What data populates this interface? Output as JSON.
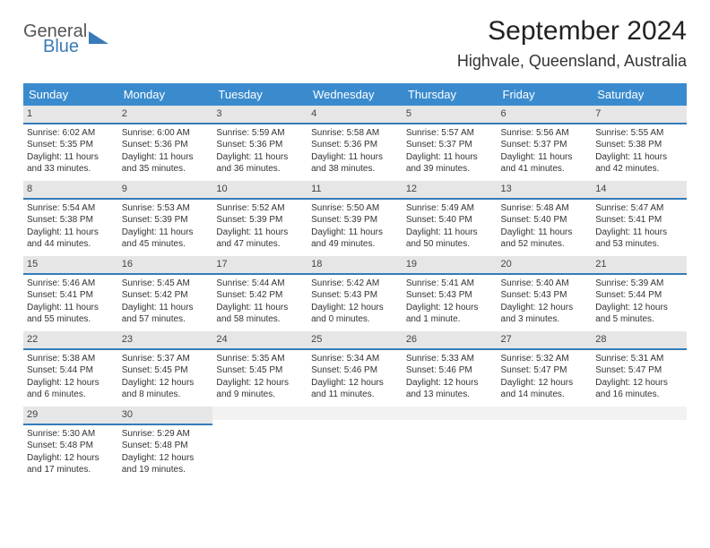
{
  "logo": {
    "line1": "General",
    "line2": "Blue"
  },
  "title": "September 2024",
  "location": "Highvale, Queensland, Australia",
  "daynames": [
    "Sunday",
    "Monday",
    "Tuesday",
    "Wednesday",
    "Thursday",
    "Friday",
    "Saturday"
  ],
  "colors": {
    "header_bg": "#3a8bce",
    "date_bar": "#e6e6e6",
    "rule": "#347cb8",
    "logo_blue": "#3a7ab8"
  },
  "weeks": [
    [
      {
        "d": "1",
        "sr": "6:02 AM",
        "ss": "5:35 PM",
        "dl": "11 hours and 33 minutes."
      },
      {
        "d": "2",
        "sr": "6:00 AM",
        "ss": "5:36 PM",
        "dl": "11 hours and 35 minutes."
      },
      {
        "d": "3",
        "sr": "5:59 AM",
        "ss": "5:36 PM",
        "dl": "11 hours and 36 minutes."
      },
      {
        "d": "4",
        "sr": "5:58 AM",
        "ss": "5:36 PM",
        "dl": "11 hours and 38 minutes."
      },
      {
        "d": "5",
        "sr": "5:57 AM",
        "ss": "5:37 PM",
        "dl": "11 hours and 39 minutes."
      },
      {
        "d": "6",
        "sr": "5:56 AM",
        "ss": "5:37 PM",
        "dl": "11 hours and 41 minutes."
      },
      {
        "d": "7",
        "sr": "5:55 AM",
        "ss": "5:38 PM",
        "dl": "11 hours and 42 minutes."
      }
    ],
    [
      {
        "d": "8",
        "sr": "5:54 AM",
        "ss": "5:38 PM",
        "dl": "11 hours and 44 minutes."
      },
      {
        "d": "9",
        "sr": "5:53 AM",
        "ss": "5:39 PM",
        "dl": "11 hours and 45 minutes."
      },
      {
        "d": "10",
        "sr": "5:52 AM",
        "ss": "5:39 PM",
        "dl": "11 hours and 47 minutes."
      },
      {
        "d": "11",
        "sr": "5:50 AM",
        "ss": "5:39 PM",
        "dl": "11 hours and 49 minutes."
      },
      {
        "d": "12",
        "sr": "5:49 AM",
        "ss": "5:40 PM",
        "dl": "11 hours and 50 minutes."
      },
      {
        "d": "13",
        "sr": "5:48 AM",
        "ss": "5:40 PM",
        "dl": "11 hours and 52 minutes."
      },
      {
        "d": "14",
        "sr": "5:47 AM",
        "ss": "5:41 PM",
        "dl": "11 hours and 53 minutes."
      }
    ],
    [
      {
        "d": "15",
        "sr": "5:46 AM",
        "ss": "5:41 PM",
        "dl": "11 hours and 55 minutes."
      },
      {
        "d": "16",
        "sr": "5:45 AM",
        "ss": "5:42 PM",
        "dl": "11 hours and 57 minutes."
      },
      {
        "d": "17",
        "sr": "5:44 AM",
        "ss": "5:42 PM",
        "dl": "11 hours and 58 minutes."
      },
      {
        "d": "18",
        "sr": "5:42 AM",
        "ss": "5:43 PM",
        "dl": "12 hours and 0 minutes."
      },
      {
        "d": "19",
        "sr": "5:41 AM",
        "ss": "5:43 PM",
        "dl": "12 hours and 1 minute."
      },
      {
        "d": "20",
        "sr": "5:40 AM",
        "ss": "5:43 PM",
        "dl": "12 hours and 3 minutes."
      },
      {
        "d": "21",
        "sr": "5:39 AM",
        "ss": "5:44 PM",
        "dl": "12 hours and 5 minutes."
      }
    ],
    [
      {
        "d": "22",
        "sr": "5:38 AM",
        "ss": "5:44 PM",
        "dl": "12 hours and 6 minutes."
      },
      {
        "d": "23",
        "sr": "5:37 AM",
        "ss": "5:45 PM",
        "dl": "12 hours and 8 minutes."
      },
      {
        "d": "24",
        "sr": "5:35 AM",
        "ss": "5:45 PM",
        "dl": "12 hours and 9 minutes."
      },
      {
        "d": "25",
        "sr": "5:34 AM",
        "ss": "5:46 PM",
        "dl": "12 hours and 11 minutes."
      },
      {
        "d": "26",
        "sr": "5:33 AM",
        "ss": "5:46 PM",
        "dl": "12 hours and 13 minutes."
      },
      {
        "d": "27",
        "sr": "5:32 AM",
        "ss": "5:47 PM",
        "dl": "12 hours and 14 minutes."
      },
      {
        "d": "28",
        "sr": "5:31 AM",
        "ss": "5:47 PM",
        "dl": "12 hours and 16 minutes."
      }
    ],
    [
      {
        "d": "29",
        "sr": "5:30 AM",
        "ss": "5:48 PM",
        "dl": "12 hours and 17 minutes."
      },
      {
        "d": "30",
        "sr": "5:29 AM",
        "ss": "5:48 PM",
        "dl": "12 hours and 19 minutes."
      },
      null,
      null,
      null,
      null,
      null
    ]
  ],
  "labels": {
    "sunrise": "Sunrise: ",
    "sunset": "Sunset: ",
    "daylight": "Daylight: "
  }
}
